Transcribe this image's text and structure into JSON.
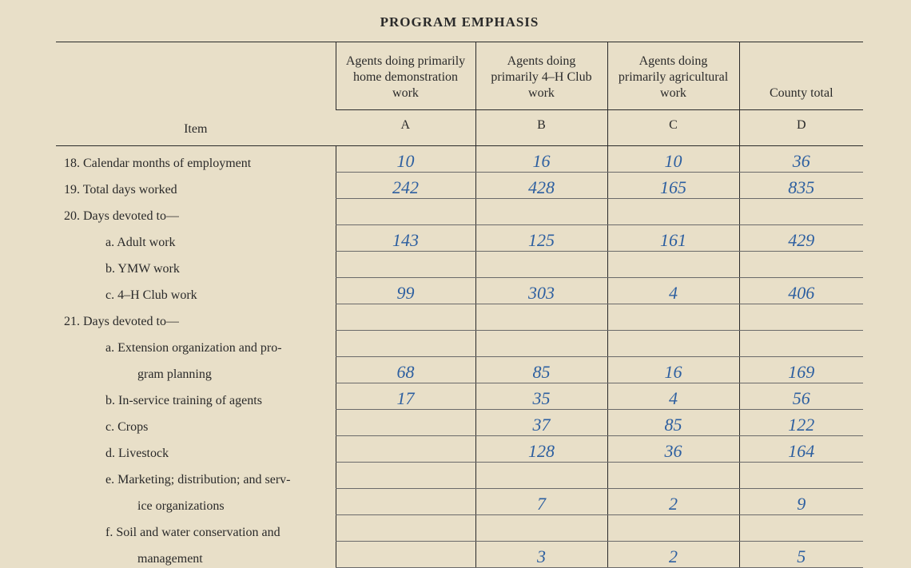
{
  "title": "PROGRAM EMPHASIS",
  "columns": {
    "item": "Item",
    "A": {
      "header": "Agents doing primarily home demonstration work",
      "letter": "A"
    },
    "B": {
      "header": "Agents doing primarily 4–H Club work",
      "letter": "B"
    },
    "C": {
      "header": "Agents doing primarily agricultural work",
      "letter": "C"
    },
    "D": {
      "header": "County total",
      "letter": "D"
    }
  },
  "rows": {
    "r18": {
      "label": "18. Calendar months of employment",
      "A": "10",
      "B": "16",
      "C": "10",
      "D": "36"
    },
    "r19": {
      "label": "19. Total days worked",
      "A": "242",
      "B": "428",
      "C": "165",
      "D": "835"
    },
    "r20": {
      "label": "20. Days devoted to—"
    },
    "r20a": {
      "label": "a. Adult work",
      "A": "143",
      "B": "125",
      "C": "161",
      "D": "429"
    },
    "r20b": {
      "label": "b. YMW work",
      "A": "",
      "B": "",
      "C": "",
      "D": ""
    },
    "r20c": {
      "label": "c. 4–H Club work",
      "A": "99",
      "B": "303",
      "C": "4",
      "D": "406"
    },
    "r21": {
      "label": "21. Days devoted to—"
    },
    "r21a1": {
      "label": "a. Extension organization and pro-"
    },
    "r21a2": {
      "label": "gram planning",
      "A": "68",
      "B": "85",
      "C": "16",
      "D": "169"
    },
    "r21b": {
      "label": "b. In-service training of agents",
      "A": "17",
      "B": "35",
      "C": "4",
      "D": "56"
    },
    "r21c": {
      "label": "c. Crops",
      "A": "",
      "B": "37",
      "C": "85",
      "D": "122"
    },
    "r21d": {
      "label": "d. Livestock",
      "A": "",
      "B": "128",
      "C": "36",
      "D": "164"
    },
    "r21e1": {
      "label": "e. Marketing; distribution; and serv-"
    },
    "r21e2": {
      "label": "ice organizations",
      "A": "",
      "B": "7",
      "C": "2",
      "D": "9"
    },
    "r21f1": {
      "label": "f. Soil and water conservation and"
    },
    "r21f2": {
      "label": "management",
      "A": "",
      "B": "3",
      "C": "2",
      "D": "5"
    }
  }
}
